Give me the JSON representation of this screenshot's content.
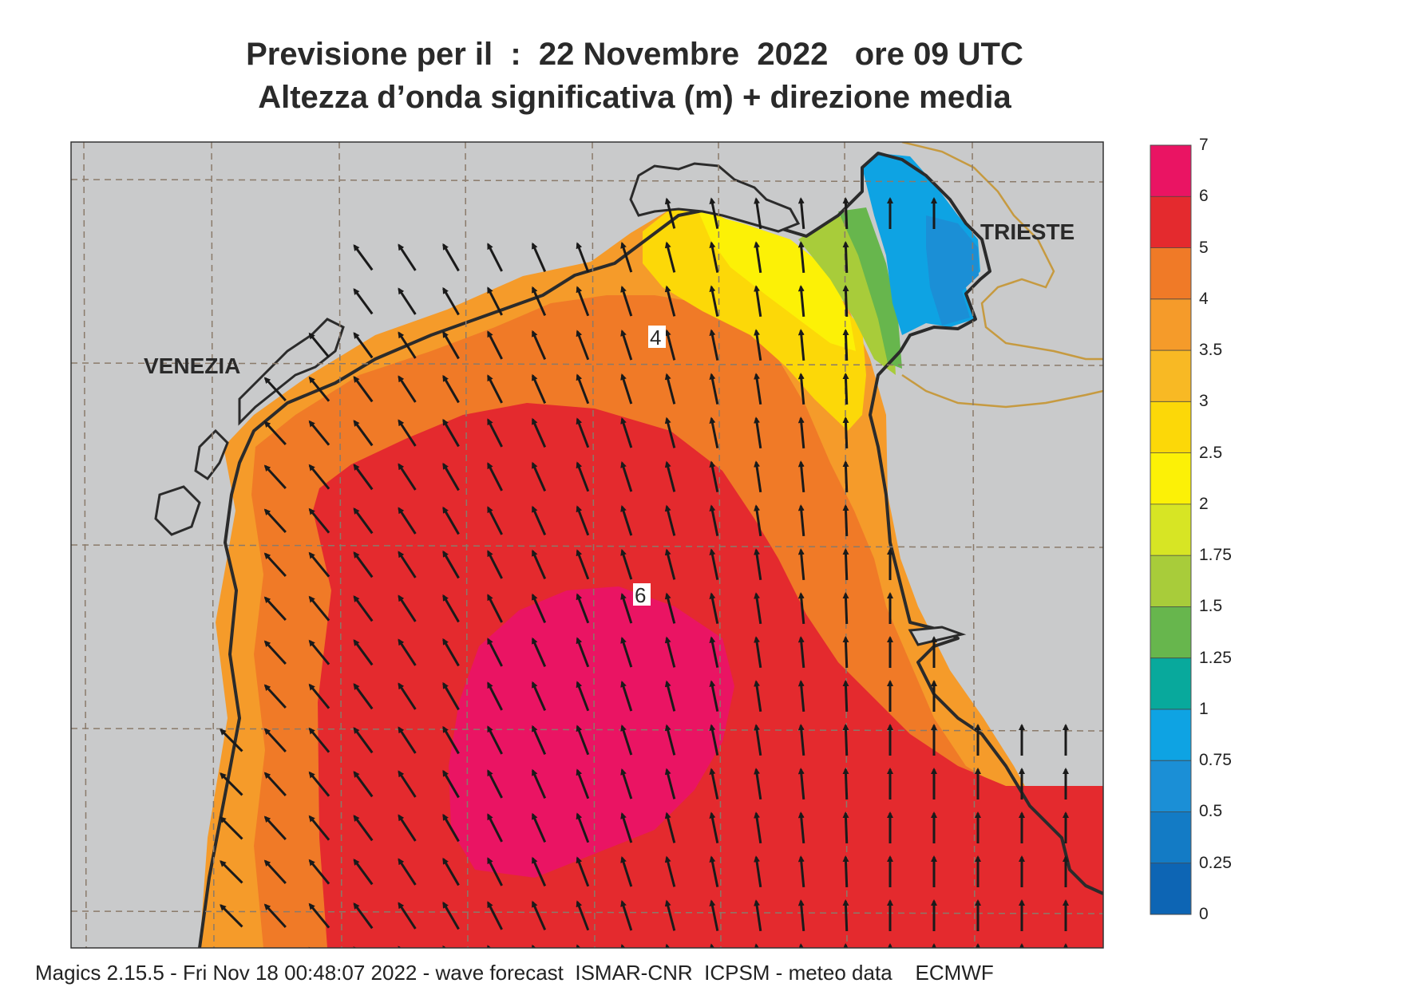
{
  "title": {
    "line1": "Previsione per il  :  22 Novembre  2022   ore 09 UTC",
    "line2": "Altezza d’onda significativa (m) + direzione media"
  },
  "cities": [
    {
      "name": "VENEZIA"
    },
    {
      "name": "TRIESTE"
    }
  ],
  "contour_labels": [
    "4",
    "6"
  ],
  "colorbar": {
    "ticks": [
      "7",
      "6",
      "5",
      "4",
      "3.5",
      "3",
      "2.5",
      "2",
      "1.75",
      "1.5",
      "1.25",
      "1",
      "0.75",
      "0.5",
      "0.25",
      "0"
    ],
    "colors": [
      "#ea1463",
      "#e42a2e",
      "#f07a27",
      "#f59b2a",
      "#f8b924",
      "#fcd808",
      "#fcf106",
      "#d7e524",
      "#a8cc3a",
      "#67b64d",
      "#08a99c",
      "#0ea3e3",
      "#1b8fd6",
      "#137bc5",
      "#0d65b4"
    ]
  },
  "footer": "Magics 2.15.5 - Fri Nov 18 00:48:07 2022 - wave forecast  ISMAR-CNR  ICPSM - meteo data    ECMWF",
  "colors": {
    "land": "#c9cacb",
    "coast": "#2b2b2b",
    "border": "#c69a40",
    "grid": "#8a7a6a",
    "arrow": "#1a1a1a"
  }
}
